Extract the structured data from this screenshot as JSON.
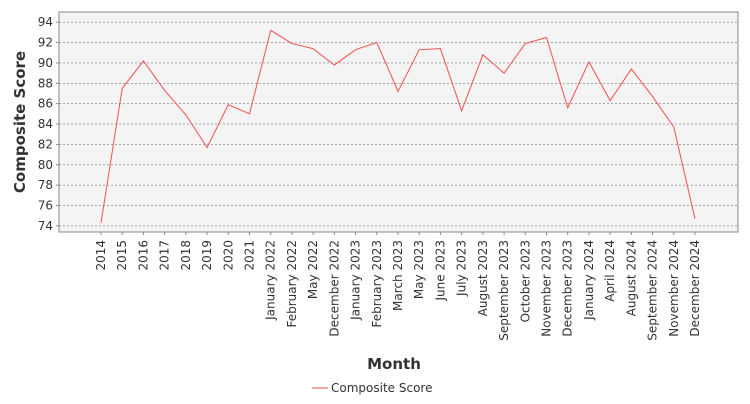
{
  "chart_data": {
    "type": "line",
    "x_label": "Month",
    "y_label": "Composite Score",
    "categories": [
      "2014",
      "2015",
      "2016",
      "2017",
      "2018",
      "2019",
      "2020",
      "2021",
      "January 2022",
      "February 2022",
      "May 2022",
      "December 2022",
      "January 2023",
      "February 2023",
      "March 2023",
      "May 2023",
      "June 2023",
      "July 2023",
      "August 2023",
      "September 2023",
      "October 2023",
      "November 2023",
      "December 2023",
      "January 2024",
      "April 2024",
      "August 2024",
      "September 2024",
      "November 2024",
      "December 2024"
    ],
    "series": [
      {
        "name": "Composite Score",
        "color": "#f05050",
        "values": [
          74.3,
          87.5,
          90.2,
          87.3,
          84.9,
          81.7,
          85.9,
          85.0,
          93.2,
          91.9,
          91.4,
          89.8,
          91.3,
          92.0,
          87.2,
          91.3,
          91.4,
          85.3,
          90.8,
          89.0,
          91.9,
          92.5,
          85.6,
          90.1,
          86.3,
          89.4,
          86.7,
          83.7,
          74.7
        ]
      }
    ],
    "ylim": [
      73.4,
      95
    ],
    "yticks": [
      74,
      76,
      78,
      80,
      82,
      84,
      86,
      88,
      90,
      92,
      94
    ],
    "grid": true
  }
}
